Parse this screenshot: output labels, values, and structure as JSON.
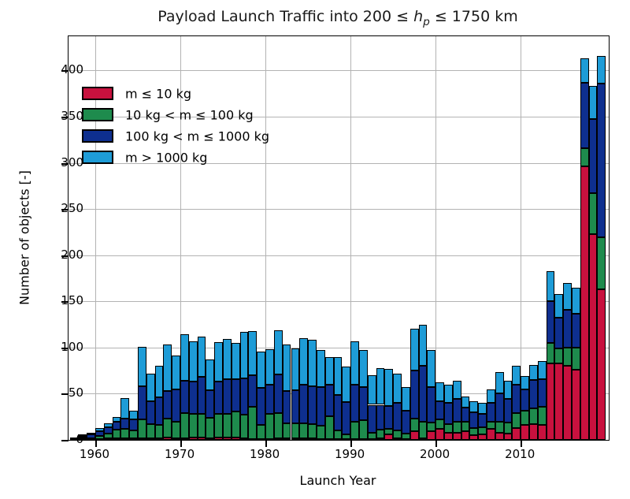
{
  "title": {
    "prefix": "Payload Launch Traffic into 200 ≤ ",
    "var": "h",
    "sub": "p",
    "suffix": " ≤ 1750 km"
  },
  "axes": {
    "xlabel": "Launch Year",
    "ylabel": "Number of objects [-]"
  },
  "colors": {
    "background": "#ffffff",
    "frame": "#000000",
    "grid": "#b3b3b3",
    "red": "#c8113e",
    "green": "#1e8b4d",
    "darkblue": "#0e2f8f",
    "lightblue": "#1e9cd7"
  },
  "chart_data": {
    "type": "bar",
    "stacked": true,
    "title": "Payload Launch Traffic into 200 ≤ h_p ≤ 1750 km",
    "xlabel": "Launch Year",
    "ylabel": "Number of objects [-]",
    "grid": true,
    "legend_position": "upper left",
    "xlim": [
      1956.85,
      2020.35
    ],
    "ylim": [
      0,
      437
    ],
    "yticks": [
      0,
      50,
      100,
      150,
      200,
      250,
      300,
      350,
      400
    ],
    "xticks": [
      1960,
      1970,
      1980,
      1990,
      2000,
      2010
    ],
    "years": [
      1957,
      1958,
      1959,
      1960,
      1961,
      1962,
      1963,
      1964,
      1965,
      1966,
      1967,
      1968,
      1969,
      1970,
      1971,
      1972,
      1973,
      1974,
      1975,
      1976,
      1977,
      1978,
      1979,
      1980,
      1981,
      1982,
      1983,
      1984,
      1985,
      1986,
      1987,
      1988,
      1989,
      1990,
      1991,
      1992,
      1993,
      1994,
      1995,
      1996,
      1997,
      1998,
      1999,
      2000,
      2001,
      2002,
      2003,
      2004,
      2005,
      2006,
      2007,
      2008,
      2009,
      2010,
      2011,
      2012,
      2013,
      2014,
      2015,
      2016,
      2017,
      2018,
      2019
    ],
    "series": [
      {
        "name": "m ≤ 10 kg",
        "color": "#c8113e",
        "values": [
          0,
          1,
          0,
          1,
          2,
          2,
          2,
          2,
          2,
          2,
          2,
          3,
          2,
          2,
          3,
          3,
          2,
          3,
          3,
          3,
          2,
          1,
          1,
          1,
          2,
          2,
          2,
          2,
          2,
          1,
          1,
          1,
          1,
          1,
          1,
          1,
          2,
          6,
          2,
          1,
          9,
          2,
          9,
          12,
          8,
          8,
          9,
          5,
          6,
          12,
          8,
          7,
          13,
          16,
          17,
          16,
          83,
          83,
          80,
          76,
          296,
          223,
          163
        ]
      },
      {
        "name": "10 kg < m ≤ 100 kg",
        "color": "#1e8b4d",
        "values": [
          1,
          2,
          2,
          3,
          5,
          9,
          10,
          8,
          20,
          15,
          14,
          20,
          18,
          27,
          25,
          25,
          22,
          25,
          25,
          28,
          25,
          35,
          15,
          27,
          27,
          16,
          16,
          16,
          15,
          14,
          25,
          9,
          5,
          19,
          20,
          7,
          9,
          6,
          8,
          6,
          14,
          18,
          10,
          10,
          9,
          12,
          11,
          8,
          8,
          8,
          12,
          12,
          16,
          16,
          17,
          20,
          22,
          16,
          20,
          24,
          20,
          44,
          56
        ]
      },
      {
        "name": "100 kg < m ≤ 1000 kg",
        "color": "#0e2f8f",
        "values": [
          1,
          1,
          4,
          5,
          7,
          9,
          11,
          12,
          36,
          25,
          30,
          30,
          35,
          35,
          35,
          40,
          30,
          35,
          38,
          35,
          40,
          34,
          40,
          32,
          42,
          35,
          36,
          42,
          41,
          42,
          34,
          39,
          35,
          40,
          36,
          30,
          27,
          25,
          30,
          25,
          52,
          60,
          38,
          20,
          23,
          24,
          15,
          17,
          14,
          20,
          30,
          25,
          31,
          23,
          31,
          30,
          45,
          33,
          41,
          37,
          71,
          80,
          167
        ]
      },
      {
        "name": "m > 1000 kg",
        "color": "#1e9cd7",
        "values": [
          0,
          1,
          1,
          4,
          4,
          5,
          22,
          10,
          43,
          30,
          34,
          50,
          36,
          50,
          44,
          44,
          33,
          43,
          43,
          39,
          50,
          48,
          40,
          38,
          48,
          50,
          45,
          50,
          50,
          40,
          30,
          41,
          38,
          47,
          40,
          32,
          40,
          40,
          32,
          25,
          45,
          45,
          40,
          20,
          20,
          20,
          12,
          12,
          12,
          15,
          23,
          20,
          20,
          14,
          16,
          19,
          33,
          26,
          29,
          28,
          26,
          36,
          30
        ]
      }
    ]
  }
}
